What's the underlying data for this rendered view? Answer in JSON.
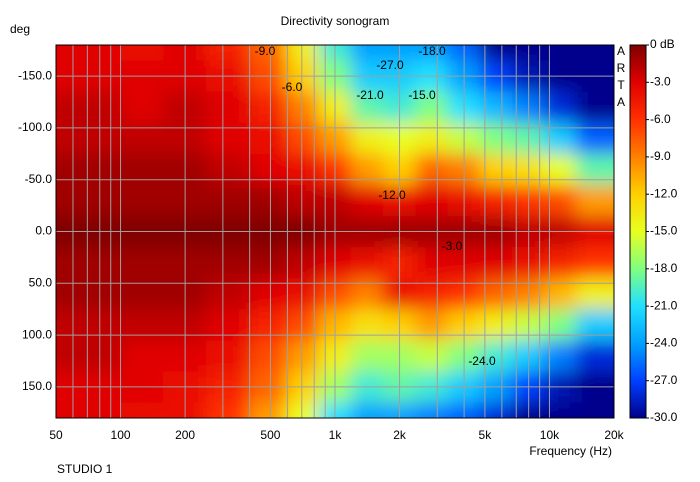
{
  "chart_data": {
    "type": "heatmap",
    "title": "Directivity sonogram",
    "ylabel": "deg",
    "xlabel": "Frequency (Hz)",
    "footer": "STUDIO 1",
    "watermark": "ARTA",
    "log_x": true,
    "y_inverted": true,
    "grid": true,
    "xlim": [
      50,
      20000
    ],
    "xticks": [
      50,
      100,
      200,
      500,
      {
        "value": 1000,
        "label": "1k"
      },
      {
        "value": 2000,
        "label": "2k"
      },
      {
        "value": 5000,
        "label": "5k"
      },
      {
        "value": 10000,
        "label": "10k"
      },
      {
        "value": 20000,
        "label": "20k"
      }
    ],
    "xminor": [
      60,
      70,
      80,
      90,
      300,
      400,
      600,
      700,
      800,
      900,
      3000,
      4000,
      6000,
      7000,
      8000,
      9000
    ],
    "ylim": [
      -180,
      180
    ],
    "yticks": [
      {
        "value": -150,
        "label": "-150.0"
      },
      {
        "value": -100,
        "label": "-100.0"
      },
      {
        "value": -50,
        "label": "-50.0"
      },
      {
        "value": 0,
        "label": "0.0"
      },
      {
        "value": 50,
        "label": "50.0"
      },
      {
        "value": 100,
        "label": "100.0"
      },
      {
        "value": 150,
        "label": "150.0"
      }
    ],
    "zlim": [
      -30,
      0
    ],
    "zticks": [
      {
        "value": 0,
        "label": "0 dB"
      },
      {
        "value": -3,
        "label": "-3.0"
      },
      {
        "value": -6,
        "label": "-6.0"
      },
      {
        "value": -9,
        "label": "-9.0"
      },
      {
        "value": -12,
        "label": "-12.0"
      },
      {
        "value": -15,
        "label": "-15.0"
      },
      {
        "value": -18,
        "label": "-18.0"
      },
      {
        "value": -21,
        "label": "-21.0"
      },
      {
        "value": -24,
        "label": "-24.0"
      },
      {
        "value": -27,
        "label": "-27.0"
      },
      {
        "value": -30,
        "label": "-30.0"
      }
    ],
    "colorscale": [
      "#800000",
      "#e00000",
      "#ff3000",
      "#ff8000",
      "#ffd000",
      "#e8ff20",
      "#80ff80",
      "#20e0ff",
      "#00a0ff",
      "#0040ff",
      "#00008c"
    ],
    "x": [
      50,
      80,
      125,
      200,
      315,
      500,
      700,
      1000,
      1400,
      2000,
      2800,
      4000,
      5600,
      8000,
      11000,
      16000
    ],
    "y": [
      -180,
      -150,
      -120,
      -90,
      -60,
      -30,
      0,
      30,
      60,
      90,
      120,
      150,
      180
    ],
    "z": [
      [
        -3,
        -3,
        -4,
        -3,
        -5,
        -8,
        -14,
        -20,
        -24,
        -24,
        -24,
        -26,
        -30,
        -30,
        -30,
        -30
      ],
      [
        -3,
        -3,
        -3,
        -3,
        -4,
        -7,
        -12,
        -18,
        -22,
        -22,
        -21,
        -24,
        -27,
        -29,
        -30,
        -30
      ],
      [
        -2,
        -2,
        -3,
        -2,
        -3,
        -5,
        -9,
        -14,
        -19,
        -20,
        -18,
        -21,
        -23,
        -25,
        -28,
        -30
      ],
      [
        -2,
        -2,
        -2,
        -2,
        -3,
        -4,
        -7,
        -10,
        -14,
        -15,
        -14,
        -16,
        -18,
        -19,
        -22,
        -26
      ],
      [
        -1,
        -1,
        -1,
        -1,
        -2,
        -3,
        -4,
        -6,
        -10,
        -12,
        -8,
        -9,
        -12,
        -13,
        -15,
        -19
      ],
      [
        -1,
        -1,
        -1,
        -1,
        -1,
        -1,
        -2,
        -2,
        -3,
        -4,
        -3,
        -4,
        -5,
        -6,
        -7,
        -10
      ],
      [
        0,
        0,
        0,
        0,
        0,
        0,
        0,
        -1,
        -1,
        -1,
        -1,
        -1,
        -1,
        -2,
        -2,
        -3
      ],
      [
        -1,
        -1,
        -1,
        -1,
        -1,
        -1,
        -2,
        -3,
        -4,
        -5,
        -3,
        -3,
        -3,
        -4,
        -5,
        -6
      ],
      [
        -1,
        -1,
        -1,
        -1,
        -2,
        -3,
        -4,
        -7,
        -9,
        -4,
        -5,
        -6,
        -8,
        -9,
        -11,
        -14
      ],
      [
        -2,
        -2,
        -2,
        -2,
        -3,
        -5,
        -7,
        -11,
        -13,
        -12,
        -10,
        -12,
        -14,
        -16,
        -18,
        -22
      ],
      [
        -2,
        -2,
        -3,
        -3,
        -4,
        -7,
        -10,
        -14,
        -17,
        -17,
        -16,
        -18,
        -20,
        -22,
        -25,
        -28
      ],
      [
        -3,
        -3,
        -3,
        -4,
        -5,
        -8,
        -12,
        -17,
        -20,
        -19,
        -20,
        -22,
        -24,
        -27,
        -29,
        -30
      ],
      [
        -3,
        -3,
        -4,
        -4,
        -6,
        -10,
        -15,
        -21,
        -24,
        -24,
        -25,
        -26,
        -28,
        -30,
        -30,
        -30
      ]
    ],
    "annotations": [
      "-9.0",
      "-18.0",
      "-27.0",
      "-6.0",
      "-21.0",
      "-15.0",
      "-12.0",
      "-3.0",
      "-24.0"
    ]
  }
}
